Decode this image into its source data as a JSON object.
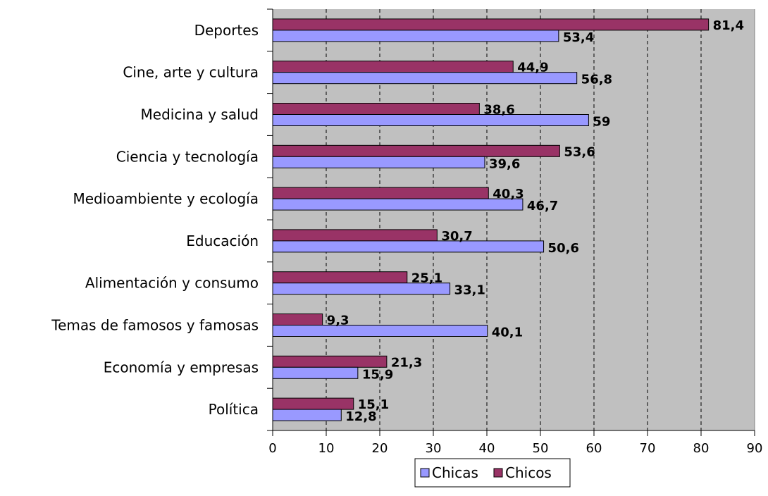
{
  "chart_data": {
    "type": "bar",
    "orientation": "horizontal",
    "categories": [
      "Deportes",
      "Cine, arte y cultura",
      "Medicina y salud",
      "Ciencia y tecnología",
      "Medioambiente y ecología",
      "Educación",
      "Alimentación y consumo",
      "Temas de famosos y famosas",
      "Economía y empresas",
      "Política"
    ],
    "series": [
      {
        "name": "Chicas",
        "color": "#9999ff",
        "values": [
          53.4,
          56.8,
          59,
          39.6,
          46.7,
          50.6,
          33.1,
          40.1,
          15.9,
          12.8
        ],
        "labels": [
          "53,4",
          "56,8",
          "59",
          "39,6",
          "46,7",
          "50,6",
          "33,1",
          "40,1",
          "15,9",
          "12,8"
        ]
      },
      {
        "name": "Chicos",
        "color": "#993366",
        "values": [
          81.4,
          44.9,
          38.6,
          53.6,
          40.3,
          30.7,
          25.1,
          9.3,
          21.3,
          15.1
        ],
        "labels": [
          "81,4",
          "44,9",
          "38,6",
          "53,6",
          "40,3",
          "30,7",
          "25,1",
          "9,3",
          "21,3",
          "15,1"
        ]
      }
    ],
    "xlim": [
      0,
      90
    ],
    "xticks": [
      "0",
      "10",
      "20",
      "30",
      "40",
      "50",
      "60",
      "70",
      "80",
      "90"
    ],
    "title": "",
    "xlabel": "",
    "ylabel": "",
    "grid": "vertical dashed",
    "plot_background": "#c0c0c0",
    "legend": [
      "Chicas",
      "Chicos"
    ],
    "legend_position": "bottom"
  }
}
